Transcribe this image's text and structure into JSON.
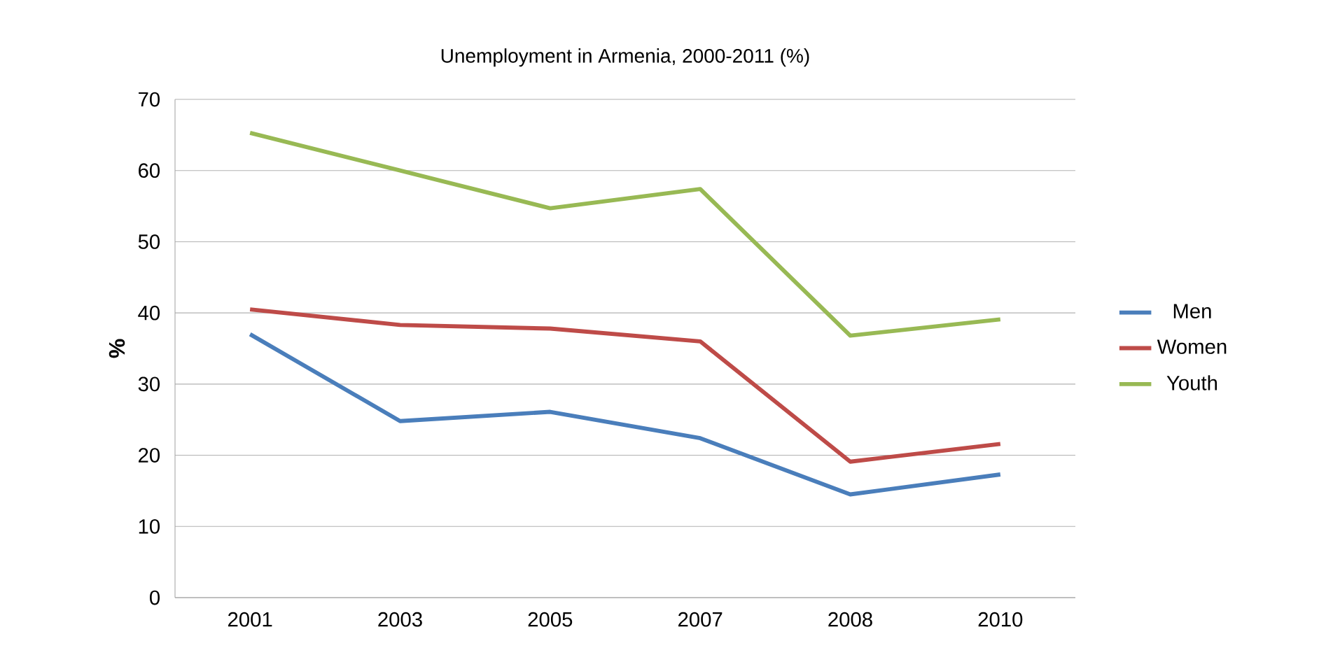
{
  "chart_data": {
    "type": "line",
    "title": "Unemployment in Armenia, 2000-2011 (%)",
    "ylabel": "%",
    "categories": [
      "2001",
      "2003",
      "2005",
      "2007",
      "2008",
      "2010"
    ],
    "series": [
      {
        "name": "Men",
        "color": "#4a7ebb",
        "values": [
          37.0,
          24.8,
          26.1,
          22.4,
          14.5,
          17.3
        ]
      },
      {
        "name": "Women",
        "color": "#be4b48",
        "values": [
          40.5,
          38.3,
          37.8,
          36.0,
          19.1,
          21.6
        ]
      },
      {
        "name": "Youth",
        "color": "#98b954",
        "values": [
          65.3,
          60.0,
          54.7,
          57.4,
          36.8,
          39.1
        ]
      }
    ],
    "ylim": [
      0,
      70
    ],
    "yticks": [
      0,
      10,
      20,
      30,
      40,
      50,
      60,
      70
    ],
    "grid": "y",
    "legend": "right",
    "marker": "none",
    "line_style": "solid"
  }
}
